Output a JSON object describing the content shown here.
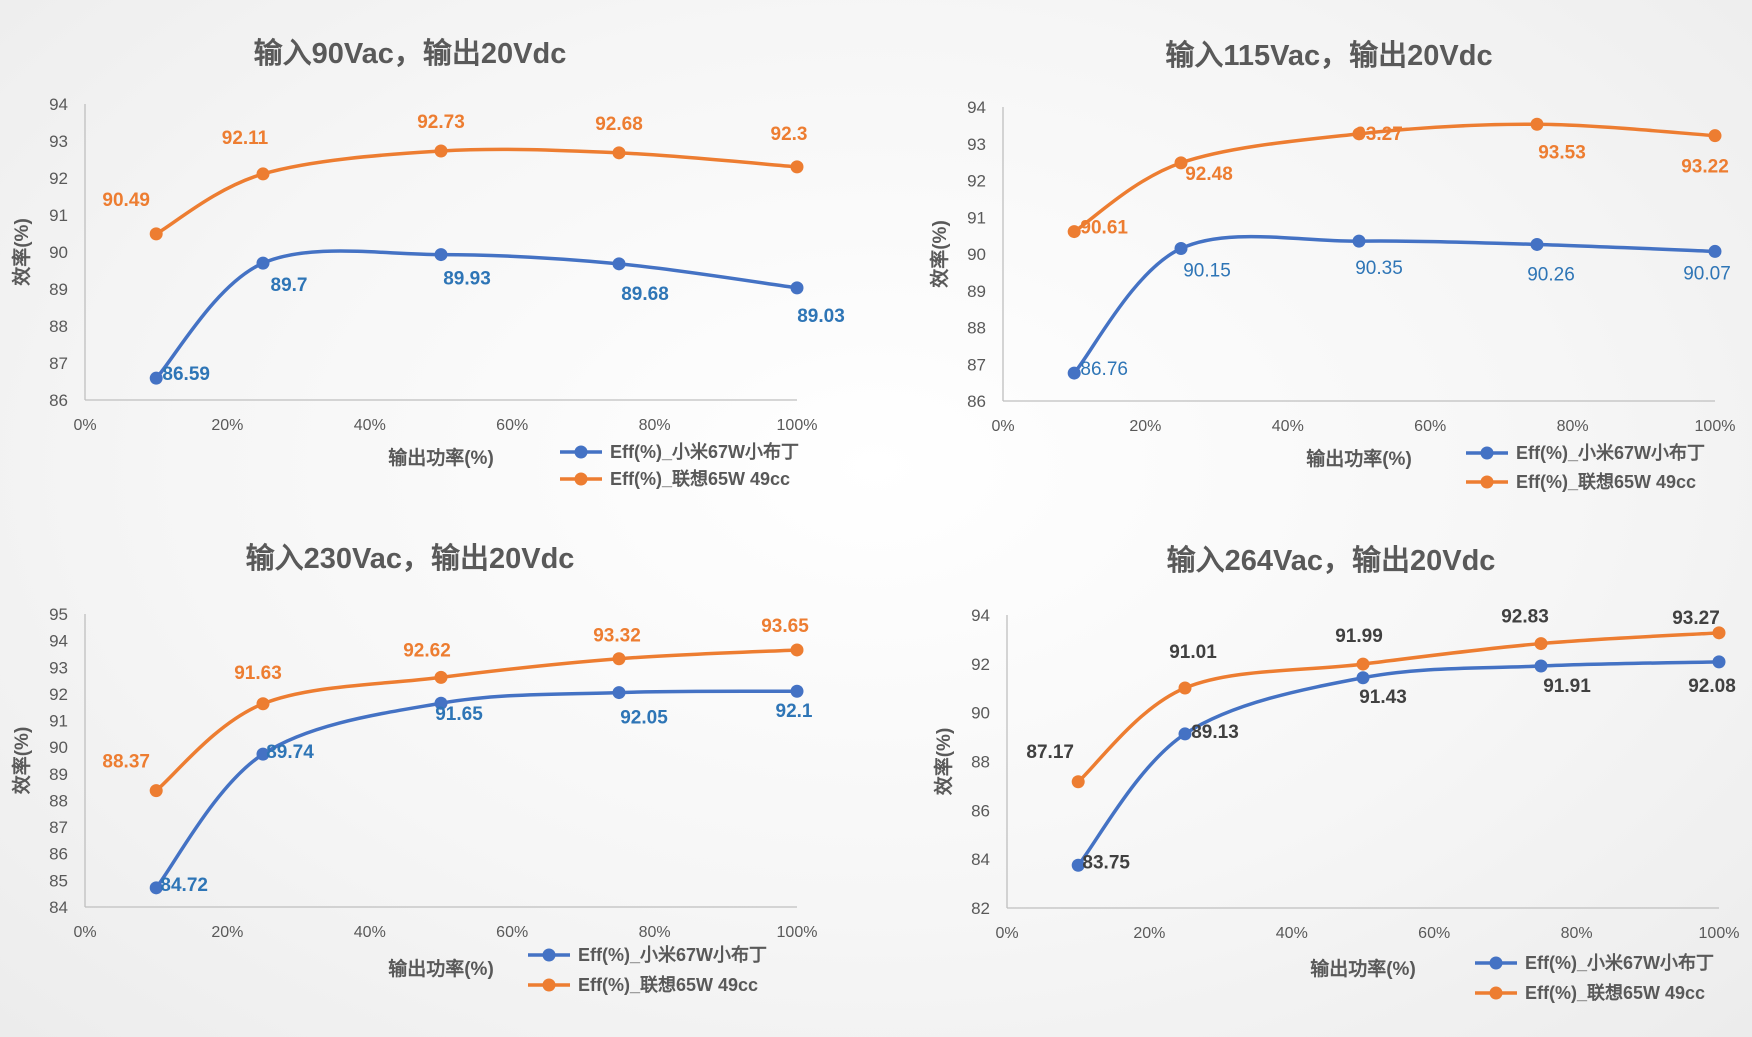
{
  "colors": {
    "blue_line": "#4472C4",
    "orange_line": "#ED7D31",
    "blue_label": "#2E75B6",
    "orange_label": "#ED7D31",
    "dark_label": "#404040",
    "axis": "#BFBFBF",
    "text": "#595959"
  },
  "chart_data": [
    {
      "type": "line",
      "title": "输入90Vac，输出20Vdc",
      "xlabel": "输出功率(%)",
      "ylabel": "效率(%)",
      "xlim": [
        0,
        100
      ],
      "ylim": [
        86,
        94
      ],
      "yticks": [
        86,
        87,
        88,
        89,
        90,
        91,
        92,
        93,
        94
      ],
      "xticks": [
        0,
        20,
        40,
        60,
        80,
        100
      ],
      "xtick_labels": [
        "0%",
        "20%",
        "40%",
        "60%",
        "80%",
        "100%"
      ],
      "smooth": true,
      "legend_position": "bottom-right",
      "series": [
        {
          "name": "Eff(%)_小米67W小布丁",
          "color": "#4472C4",
          "label_color": "#2E75B6",
          "x": [
            10,
            25,
            50,
            75,
            100
          ],
          "y": [
            86.59,
            89.7,
            89.93,
            89.68,
            89.03
          ],
          "labels": [
            "86.59",
            "89.7",
            "89.93",
            "89.68",
            "89.03"
          ]
        },
        {
          "name": "Eff(%)_联想65W 49cc",
          "color": "#ED7D31",
          "label_color": "#ED7D31",
          "x": [
            10,
            25,
            50,
            75,
            100
          ],
          "y": [
            90.49,
            92.11,
            92.73,
            92.68,
            92.3
          ],
          "labels": [
            "90.49",
            "92.11",
            "92.73",
            "92.68",
            "92.3"
          ]
        }
      ]
    },
    {
      "type": "line",
      "title": "输入115Vac，输出20Vdc",
      "xlabel": "输出功率(%)",
      "ylabel": "效率(%)",
      "xlim": [
        0,
        100
      ],
      "ylim": [
        86,
        94
      ],
      "yticks": [
        86,
        87,
        88,
        89,
        90,
        91,
        92,
        93,
        94
      ],
      "xticks": [
        0,
        20,
        40,
        60,
        80,
        100
      ],
      "xtick_labels": [
        "0%",
        "20%",
        "40%",
        "60%",
        "80%",
        "100%"
      ],
      "smooth": true,
      "legend_position": "bottom-right",
      "series": [
        {
          "name": "Eff(%)_小米67W小布丁",
          "color": "#4472C4",
          "label_color": "#2E75B6",
          "x": [
            10,
            25,
            50,
            75,
            100
          ],
          "y": [
            86.76,
            90.15,
            90.35,
            90.26,
            90.07
          ],
          "labels": [
            "86.76",
            "90.15",
            "90.35",
            "90.26",
            "90.07"
          ]
        },
        {
          "name": "Eff(%)_联想65W 49cc",
          "color": "#ED7D31",
          "label_color": "#ED7D31",
          "x": [
            10,
            25,
            50,
            75,
            100
          ],
          "y": [
            90.61,
            92.48,
            93.27,
            93.53,
            93.22
          ],
          "labels": [
            "90.61",
            "92.48",
            "93.27",
            "93.53",
            "93.22"
          ]
        }
      ]
    },
    {
      "type": "line",
      "title": "输入230Vac，输出20Vdc",
      "xlabel": "输出功率(%)",
      "ylabel": "效率(%)",
      "xlim": [
        0,
        100
      ],
      "ylim": [
        84,
        95
      ],
      "yticks": [
        84,
        85,
        86,
        87,
        88,
        89,
        90,
        91,
        92,
        93,
        94,
        95
      ],
      "xticks": [
        0,
        20,
        40,
        60,
        80,
        100
      ],
      "xtick_labels": [
        "0%",
        "20%",
        "40%",
        "60%",
        "80%",
        "100%"
      ],
      "smooth": true,
      "legend_position": "bottom-right",
      "series": [
        {
          "name": "Eff(%)_小米67W小布丁",
          "color": "#4472C4",
          "label_color": "#2E75B6",
          "x": [
            10,
            25,
            50,
            75,
            100
          ],
          "y": [
            84.72,
            89.74,
            91.65,
            92.05,
            92.1
          ],
          "labels": [
            "84.72",
            "89.74",
            "91.65",
            "92.05",
            "92.1"
          ]
        },
        {
          "name": "Eff(%)_联想65W 49cc",
          "color": "#ED7D31",
          "label_color": "#ED7D31",
          "x": [
            10,
            25,
            50,
            75,
            100
          ],
          "y": [
            88.37,
            91.63,
            92.62,
            93.32,
            93.65
          ],
          "labels": [
            "88.37",
            "91.63",
            "92.62",
            "93.32",
            "93.65"
          ]
        }
      ]
    },
    {
      "type": "line",
      "title": "输入264Vac，输出20Vdc",
      "xlabel": "输出功率(%)",
      "ylabel": "效率(%)",
      "xlim": [
        0,
        100
      ],
      "ylim": [
        82,
        94
      ],
      "yticks": [
        82,
        84,
        86,
        88,
        90,
        92,
        94
      ],
      "xticks": [
        0,
        20,
        40,
        60,
        80,
        100
      ],
      "xtick_labels": [
        "0%",
        "20%",
        "40%",
        "60%",
        "80%",
        "100%"
      ],
      "smooth": true,
      "legend_position": "bottom-right",
      "series": [
        {
          "name": "Eff(%)_小米67W小布丁",
          "color": "#4472C4",
          "label_color": "#404040",
          "x": [
            10,
            25,
            50,
            75,
            100
          ],
          "y": [
            83.75,
            89.13,
            91.43,
            91.91,
            92.08
          ],
          "labels": [
            "83.75",
            "89.13",
            "91.43",
            "91.91",
            "92.08"
          ]
        },
        {
          "name": "Eff(%)_联想65W 49cc",
          "color": "#ED7D31",
          "label_color": "#404040",
          "x": [
            10,
            25,
            50,
            75,
            100
          ],
          "y": [
            87.17,
            91.01,
            91.99,
            92.83,
            93.27
          ],
          "labels": [
            "87.17",
            "91.01",
            "91.99",
            "92.83",
            "93.27"
          ]
        }
      ]
    }
  ]
}
